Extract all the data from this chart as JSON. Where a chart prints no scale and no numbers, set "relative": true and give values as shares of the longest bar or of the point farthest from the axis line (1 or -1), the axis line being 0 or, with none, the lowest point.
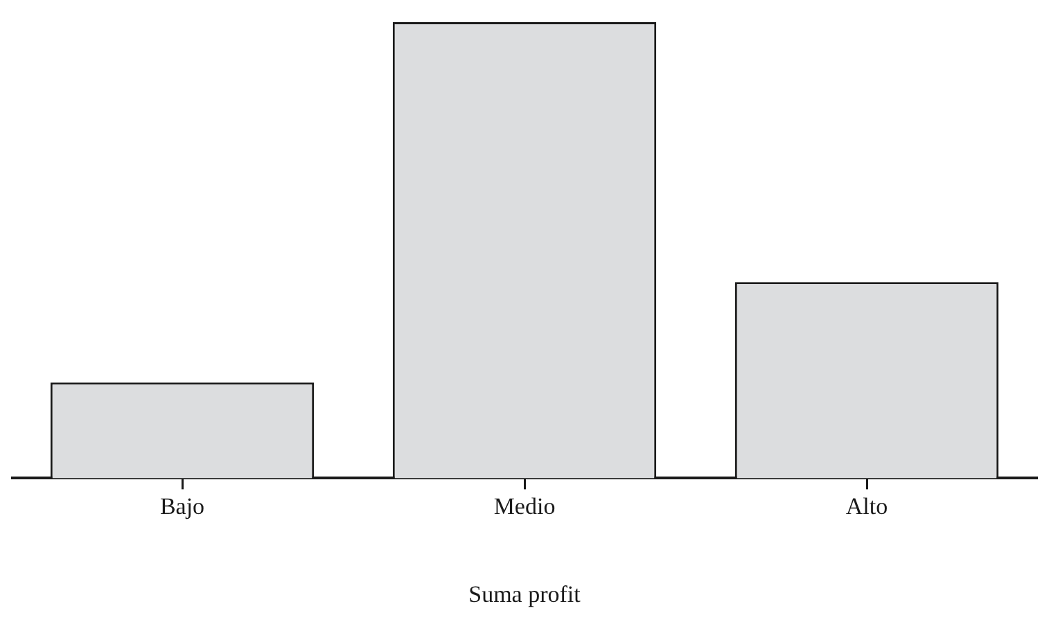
{
  "chart_data": {
    "type": "bar",
    "xlabel": "Suma profit",
    "categories": [
      "Bajo",
      "Medio",
      "Alto"
    ],
    "values": [
      0.21,
      1,
      0.43
    ],
    "color": "#dcdddf",
    "relative": true,
    "grid": false,
    "legend": false
  }
}
